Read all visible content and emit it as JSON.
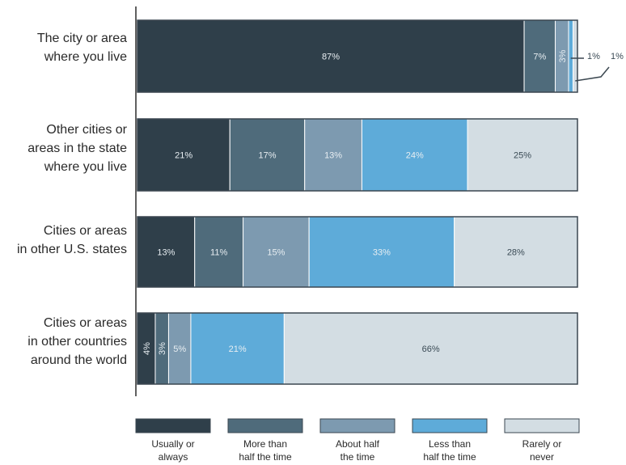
{
  "chart_data": {
    "type": "bar",
    "orientation": "horizontal",
    "stacked": true,
    "percent": true,
    "categories": [
      [
        "The city or area",
        "where you live"
      ],
      [
        "Other cities or",
        "areas in the state",
        "where you live"
      ],
      [
        "Cities or areas",
        "in other U.S. states"
      ],
      [
        "Cities or areas",
        "in other countries",
        "around the world"
      ]
    ],
    "series": [
      {
        "name": [
          "Usually or",
          "always"
        ],
        "color": "#2f3f4a",
        "values": [
          87,
          21,
          13,
          4
        ]
      },
      {
        "name": [
          "More than",
          "half the time"
        ],
        "color": "#4f6b7b",
        "values": [
          7,
          17,
          11,
          3
        ]
      },
      {
        "name": [
          "About half",
          "the time"
        ],
        "color": "#7d9ab0",
        "values": [
          3,
          13,
          15,
          5
        ]
      },
      {
        "name": [
          "Less than",
          "half the time"
        ],
        "color": "#5eabd9",
        "values": [
          1,
          24,
          33,
          21
        ]
      },
      {
        "name": [
          "Rarely or",
          "never"
        ],
        "color": "#d3dde3",
        "values": [
          1,
          25,
          28,
          66
        ]
      }
    ],
    "value_labels": [
      [
        "87%",
        "7%",
        "3%",
        "1%",
        "1%"
      ],
      [
        "21%",
        "17%",
        "13%",
        "24%",
        "25%"
      ],
      [
        "13%",
        "11%",
        "15%",
        "33%",
        "28%"
      ],
      [
        "4%",
        "3%",
        "5%",
        "21%",
        "66%"
      ]
    ],
    "legend_position": "bottom"
  }
}
